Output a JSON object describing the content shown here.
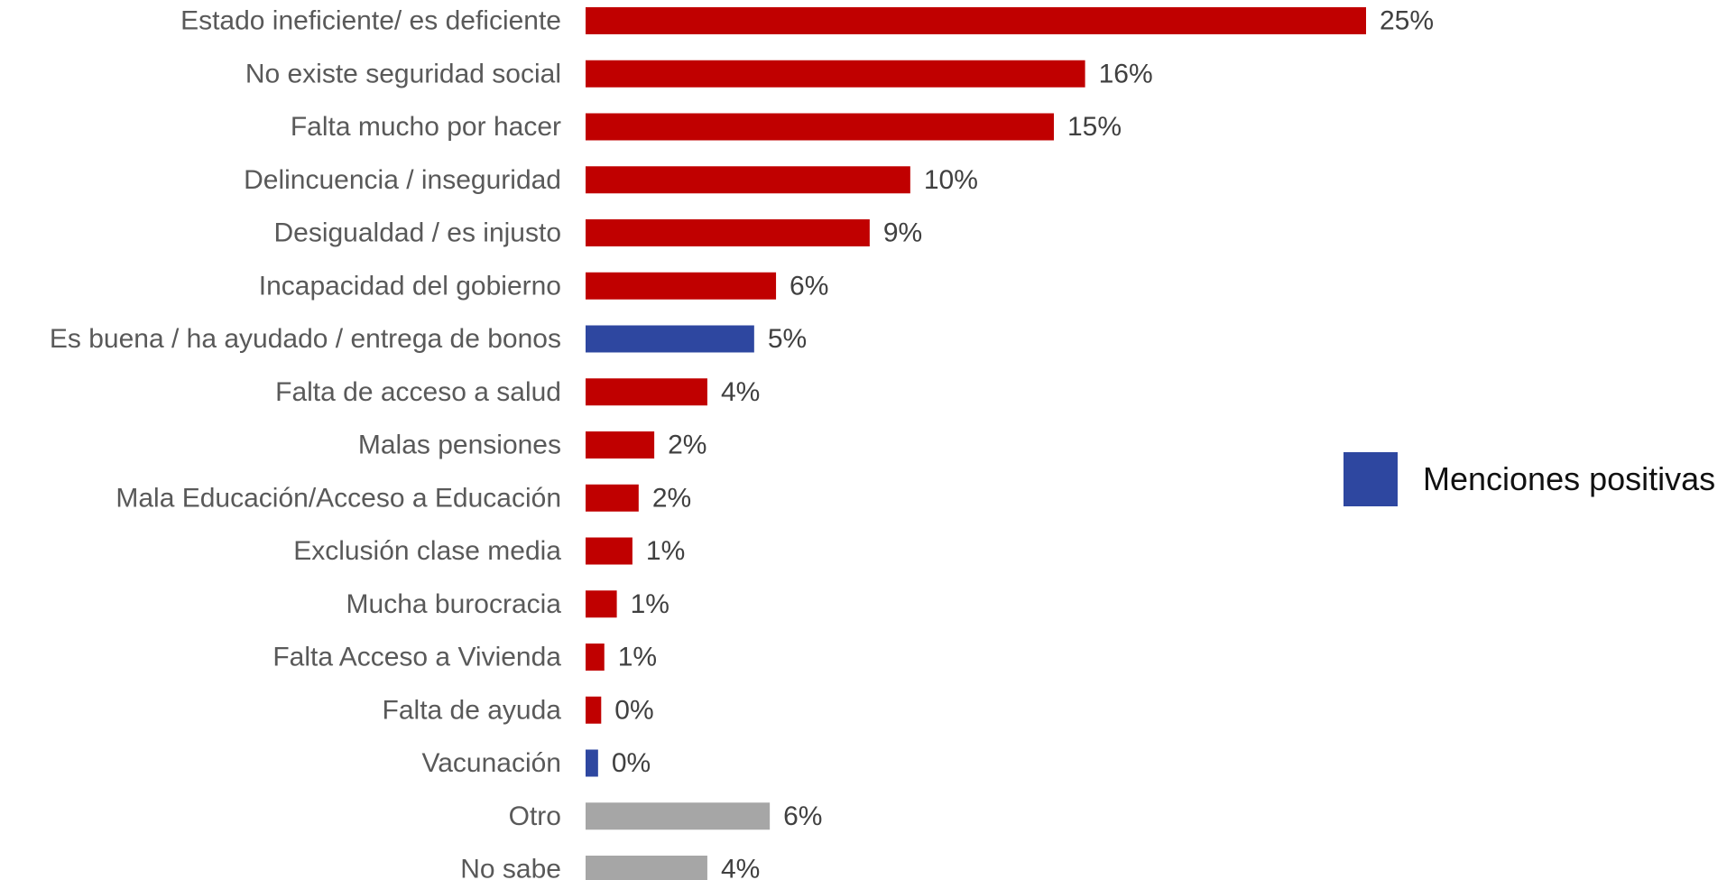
{
  "colors": {
    "negative": "#C00000",
    "positive": "#2E47A0",
    "neutral": "#A6A6A6"
  },
  "legend": {
    "label": "Menciones positivas",
    "color": "#2E47A0"
  },
  "chart_data": {
    "type": "bar",
    "orientation": "horizontal",
    "categories": [
      "Estado ineficiente/ es deficiente",
      "No existe seguridad social",
      "Falta mucho por hacer",
      "Delincuencia / inseguridad",
      "Desigualdad / es injusto",
      "Incapacidad del gobierno",
      "Es buena / ha ayudado / entrega de bonos",
      "Falta de acceso a salud",
      "Malas pensiones",
      "Mala Educación/Acceso a Educación",
      "Exclusión clase media",
      "Mucha burocracia",
      "Falta Acceso a Vivienda",
      "Falta de ayuda",
      "Vacunación",
      "Otro",
      "No sabe"
    ],
    "values": [
      25.0,
      16.0,
      15.0,
      10.4,
      9.1,
      6.1,
      5.4,
      3.9,
      2.2,
      1.7,
      1.5,
      1.0,
      0.6,
      0.5,
      0.4,
      5.9,
      3.9
    ],
    "value_labels": [
      "25%",
      "16%",
      "15%",
      "10%",
      "9%",
      "6%",
      "5%",
      "4%",
      "2%",
      "2%",
      "1%",
      "1%",
      "1%",
      "0%",
      "0%",
      "6%",
      "4%"
    ],
    "bar_colors": [
      "#C00000",
      "#C00000",
      "#C00000",
      "#C00000",
      "#C00000",
      "#C00000",
      "#2E47A0",
      "#C00000",
      "#C00000",
      "#C00000",
      "#C00000",
      "#C00000",
      "#C00000",
      "#C00000",
      "#2E47A0",
      "#A6A6A6",
      "#A6A6A6"
    ],
    "xlim": [
      0,
      25
    ],
    "grid": false,
    "legend_position": "right"
  }
}
